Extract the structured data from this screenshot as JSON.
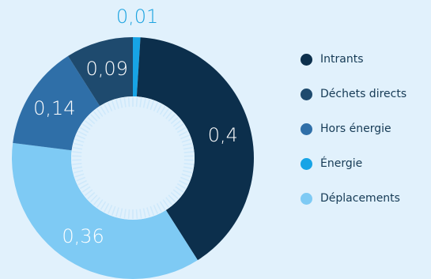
{
  "chart_data": {
    "type": "pie",
    "donut": true,
    "categories": [
      "Intrants",
      "Déchets directs",
      "Hors énergie",
      "Énergie",
      "Déplacements"
    ],
    "values": [
      0.4,
      0.09,
      0.14,
      0.01,
      0.36
    ],
    "value_labels": [
      "0,4",
      "0,09",
      "0,14",
      "0,01",
      "0,36"
    ],
    "slice_order_clockwise_from_top": [
      "Énergie",
      "Intrants",
      "Déplacements",
      "Hors énergie",
      "Déchets directs"
    ],
    "colors": {
      "Intrants": "#0c2f4c",
      "Déchets directs": "#1e4a6e",
      "Hors énergie": "#2f6fa8",
      "Énergie": "#17a4e6",
      "Déplacements": "#7ecaf4"
    },
    "legend_position": "right",
    "title": "",
    "xlabel": "",
    "ylabel": ""
  },
  "colors": {
    "background": "#e1f1fc",
    "ring_ticks": "#cfe9fb",
    "outside_label": "#1ba3e0"
  }
}
